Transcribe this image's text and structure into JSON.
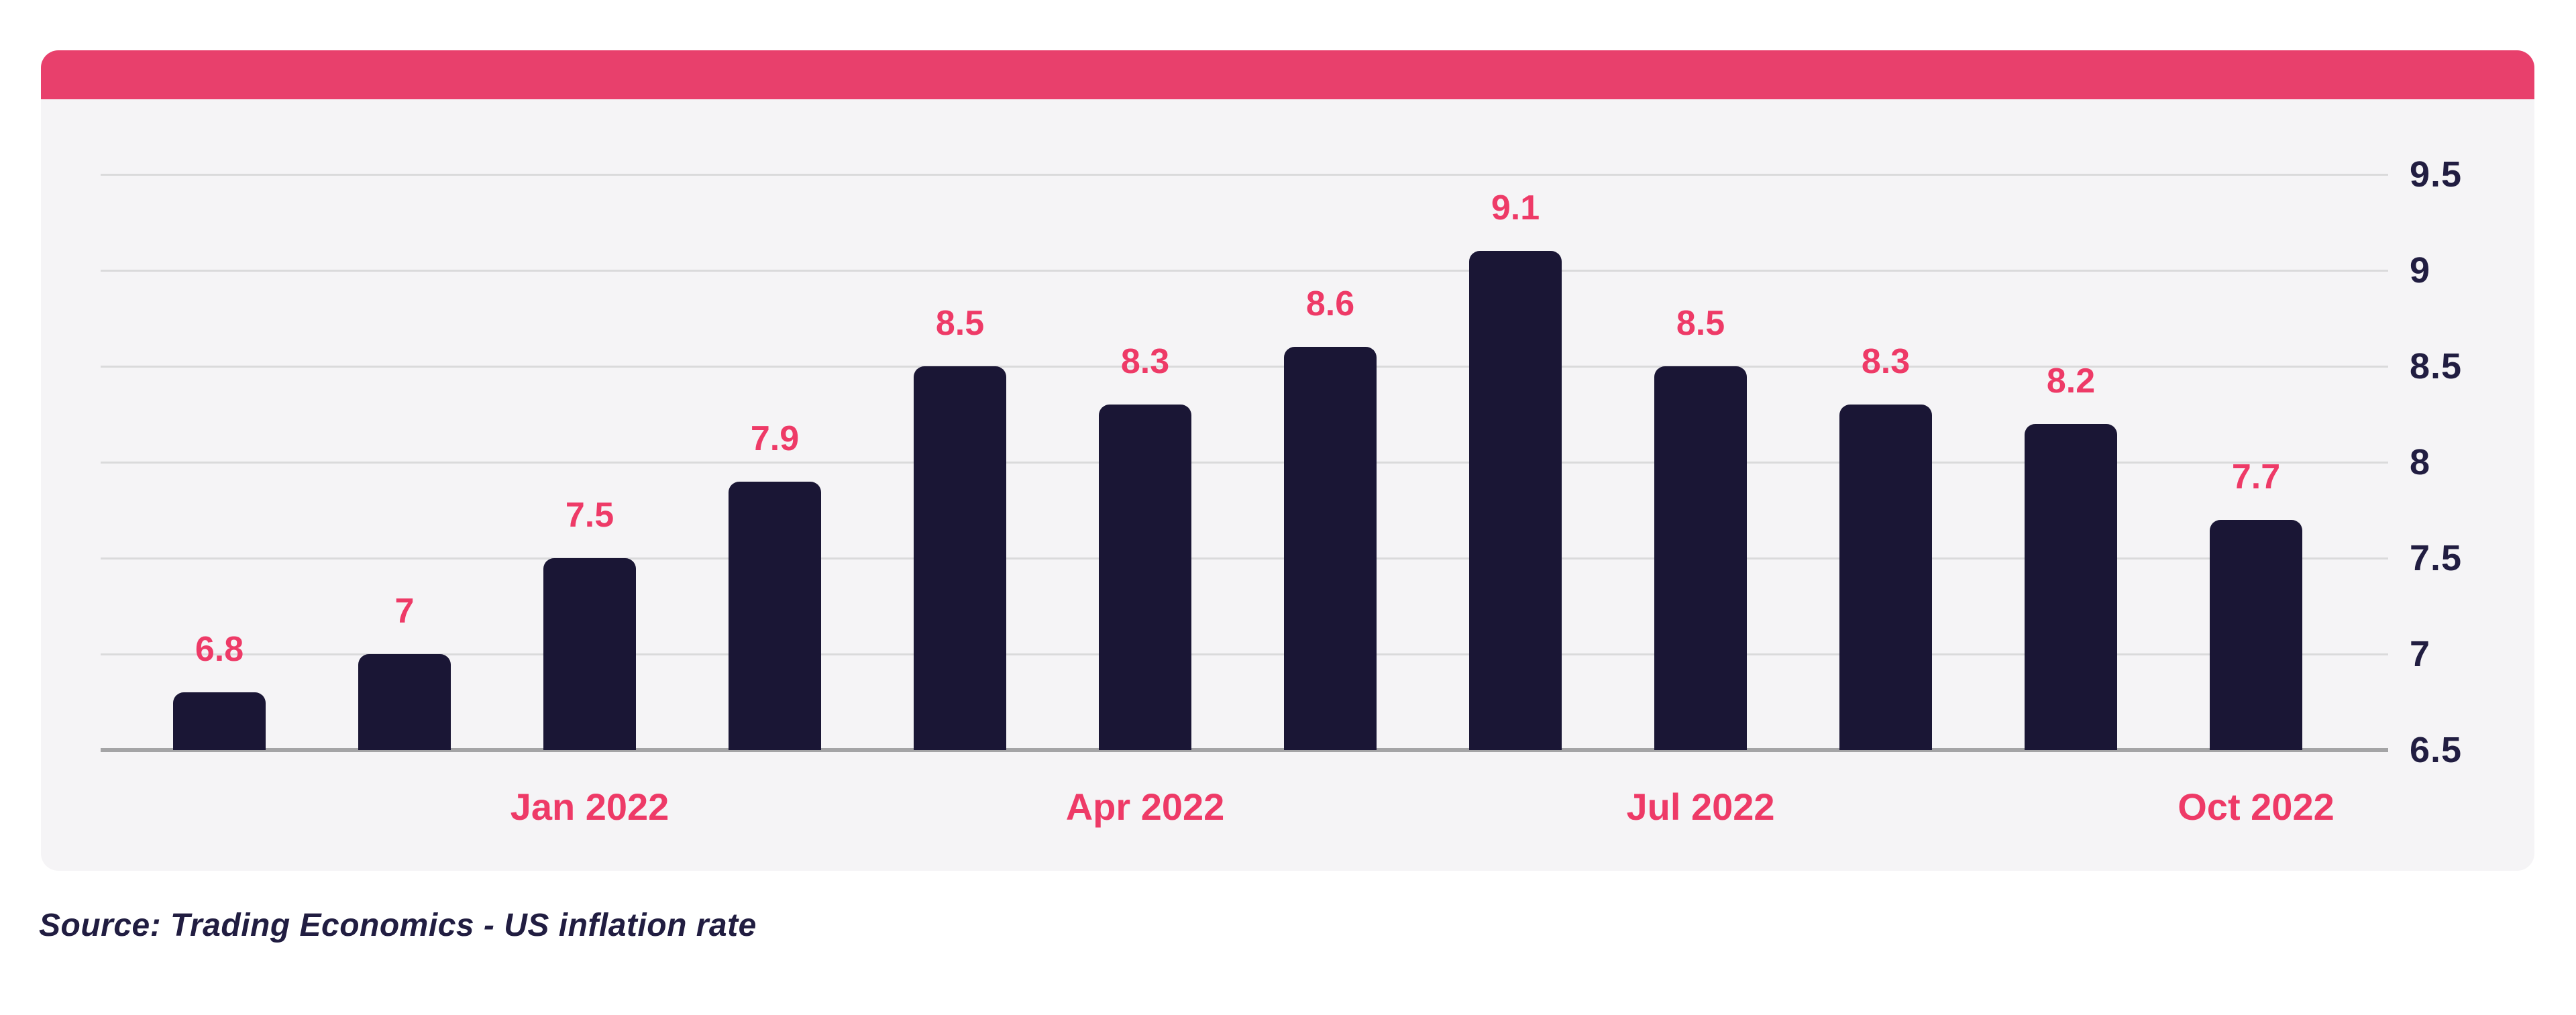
{
  "page": {
    "background": "#ffffff"
  },
  "card": {
    "background": "#f5f4f6",
    "header_color": "#e8406c"
  },
  "colors": {
    "bar": "#1a1635",
    "value_label": "#ee3a67",
    "month_label": "#ee3a67",
    "axis_text": "#211d41",
    "gridline": "#dadadb",
    "baseline": "#a4a4a6",
    "source_text": "#211d41"
  },
  "source_note": "Source: Trading Economics - US inflation rate",
  "chart_data": {
    "type": "bar",
    "title": "",
    "values": [
      6.8,
      7,
      7.5,
      7.9,
      8.5,
      8.3,
      8.6,
      9.1,
      8.5,
      8.3,
      8.2,
      7.7
    ],
    "bar_labels": [
      "6.8",
      "7",
      "7.5",
      "7.9",
      "8.5",
      "8.3",
      "8.6",
      "9.1",
      "8.5",
      "8.3",
      "8.2",
      "7.7"
    ],
    "x_tick_labels": [
      "",
      "",
      "Jan 2022",
      "",
      "",
      "Apr 2022",
      "",
      "",
      "Jul 2022",
      "",
      "",
      "Oct 2022"
    ],
    "y_ticks": [
      9.5,
      9,
      8.5,
      8,
      7.5,
      7,
      6.5
    ],
    "y_tick_labels": [
      "9.5",
      "9",
      "8.5",
      "8",
      "7.5",
      "7",
      "6.5"
    ],
    "ylim": [
      6.5,
      9.5
    ],
    "grid": "horizontal",
    "gridline_step": 0.5,
    "legend": "none",
    "y_axis_side": "right",
    "bar_label_position": "above",
    "source": "Source: Trading Economics - US inflation rate"
  }
}
